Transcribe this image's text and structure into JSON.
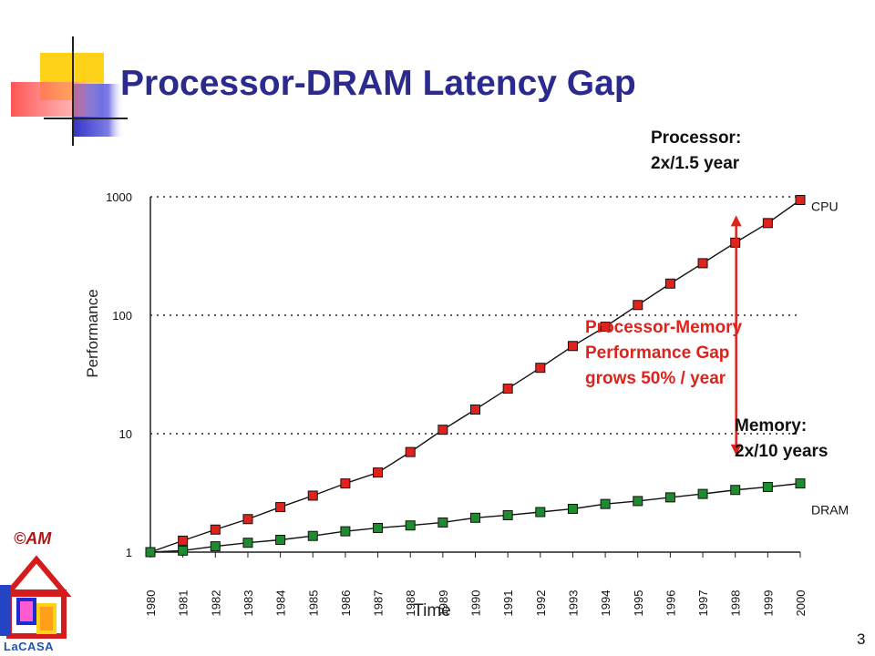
{
  "slide": {
    "title": "Processor-DRAM Latency Gap",
    "copyright": "©AM",
    "logo_text": "LaCASA",
    "page_number": "3"
  },
  "annotations": {
    "processor_line1": "Processor:",
    "processor_line2": "2x/1.5 year",
    "gap_line1": "Processor-Memory",
    "gap_line2": "Performance Gap",
    "gap_line3": "grows 50% / year",
    "memory_line1": "Memory:",
    "memory_line2": "2x/10 years"
  },
  "colors": {
    "title": "#2b2b8f",
    "cpu_marker": "#e0221c",
    "dram_marker": "#1e8c2e",
    "gap_arrow": "#e0221c"
  },
  "chart_data": {
    "type": "line",
    "title": "",
    "xlabel": "Time",
    "ylabel": "Performance",
    "y_scale": "log",
    "ylim": [
      1,
      1000
    ],
    "y_ticks": [
      1,
      10,
      100,
      1000
    ],
    "y_tick_labels": [
      "1",
      "10",
      "100",
      "1000"
    ],
    "grid": "dotted horizontal at 10, 100, 1000",
    "categories": [
      "1980",
      "1981",
      "1982",
      "1983",
      "1984",
      "1985",
      "1986",
      "1987",
      "1988",
      "1989",
      "1990",
      "1991",
      "1992",
      "1993",
      "1994",
      "1995",
      "1996",
      "1997",
      "1998",
      "1999",
      "2000"
    ],
    "series": [
      {
        "name": "CPU",
        "values": [
          1,
          1.25,
          1.55,
          1.9,
          2.4,
          3.0,
          3.8,
          4.7,
          7.0,
          10.8,
          16,
          24,
          36,
          55,
          80,
          122,
          185,
          275,
          410,
          600,
          940
        ]
      },
      {
        "name": "DRAM",
        "values": [
          1,
          1.03,
          1.12,
          1.2,
          1.27,
          1.37,
          1.5,
          1.6,
          1.68,
          1.78,
          1.95,
          2.05,
          2.18,
          2.32,
          2.55,
          2.7,
          2.9,
          3.1,
          3.35,
          3.55,
          3.8
        ]
      }
    ]
  }
}
